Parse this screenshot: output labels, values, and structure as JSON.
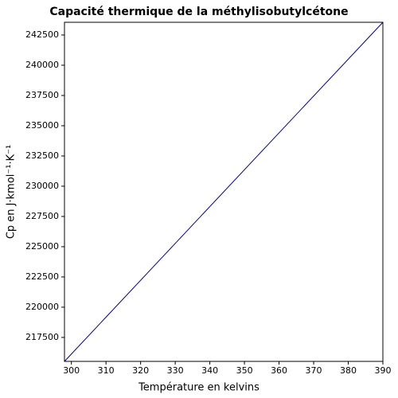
{
  "chart_data": {
    "type": "line",
    "title": "Capacité thermique de la méthylisobutylcétone",
    "x_label": "Température en kelvins",
    "y_label": "Cp en J·kmol⁻¹·K⁻¹",
    "x": [
      298,
      390
    ],
    "series": [
      {
        "color": "#00008b",
        "values": [
          215520,
          243550
        ]
      }
    ],
    "xlim": [
      298,
      390
    ],
    "xticks": [
      300,
      310,
      320,
      330,
      340,
      350,
      360,
      370,
      380,
      390
    ],
    "ylim": [
      215520,
      243550
    ],
    "yticks": [
      217500,
      220000,
      222500,
      225000,
      227500,
      230000,
      232500,
      235000,
      237500,
      240000,
      242500
    ],
    "grid": false
  }
}
